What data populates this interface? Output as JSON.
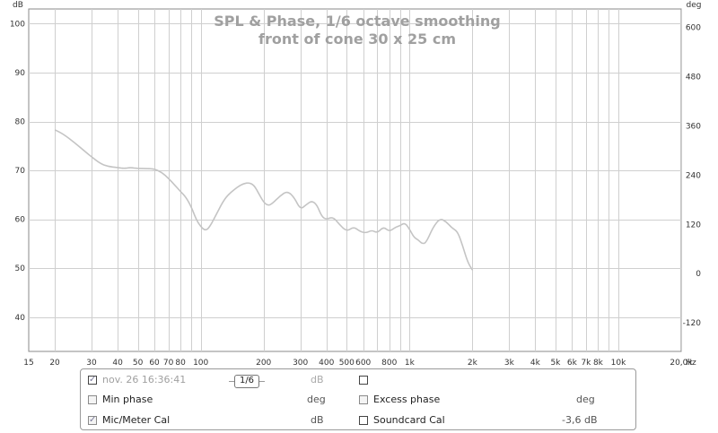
{
  "chart_data": {
    "type": "line",
    "title": "SPL & Phase, 1/6 octave smoothing",
    "subtitle": "front of cone 30 x 25 cm",
    "ylabel_left": "dB",
    "ylabel_right": "deg",
    "xunit": "Hz",
    "xscale": "log",
    "xlim": [
      15,
      20000
    ],
    "ylim_left": [
      33,
      103
    ],
    "ylim_right": [
      -189.6,
      645
    ],
    "grid": true,
    "x_ticks": [
      {
        "value": 15,
        "label": "15"
      },
      {
        "value": 20,
        "label": "20"
      },
      {
        "value": 30,
        "label": "30"
      },
      {
        "value": 40,
        "label": "40"
      },
      {
        "value": 50,
        "label": "50"
      },
      {
        "value": 60,
        "label": "60"
      },
      {
        "value": 70,
        "label": "70"
      },
      {
        "value": 80,
        "label": "80"
      },
      {
        "value": 100,
        "label": "100"
      },
      {
        "value": 200,
        "label": "200"
      },
      {
        "value": 300,
        "label": "300"
      },
      {
        "value": 400,
        "label": "400"
      },
      {
        "value": 500,
        "label": "500"
      },
      {
        "value": 600,
        "label": "600"
      },
      {
        "value": 800,
        "label": "800"
      },
      {
        "value": 1000,
        "label": "1k"
      },
      {
        "value": 2000,
        "label": "2k"
      },
      {
        "value": 3000,
        "label": "3k"
      },
      {
        "value": 4000,
        "label": "4k"
      },
      {
        "value": 5000,
        "label": "5k"
      },
      {
        "value": 6000,
        "label": "6k"
      },
      {
        "value": 7000,
        "label": "7k"
      },
      {
        "value": 8000,
        "label": "8k"
      },
      {
        "value": 10000,
        "label": "10k"
      },
      {
        "value": 20000,
        "label": "20,0k"
      }
    ],
    "y_ticks_left": [
      40,
      50,
      60,
      70,
      80,
      90,
      100
    ],
    "y_ticks_right": [
      -120,
      0,
      120,
      240,
      360,
      480,
      600
    ],
    "series": [
      {
        "name": "",
        "color": "#c4c4c4",
        "x": [
          20,
          22,
          25,
          28,
          30,
          33,
          36,
          40,
          43,
          46,
          50,
          55,
          60,
          65,
          70,
          75,
          80,
          85,
          90,
          95,
          100,
          105,
          110,
          120,
          130,
          140,
          150,
          160,
          170,
          180,
          190,
          200,
          210,
          220,
          240,
          260,
          280,
          300,
          320,
          340,
          360,
          380,
          400,
          430,
          460,
          500,
          540,
          580,
          620,
          660,
          700,
          750,
          800,
          850,
          900,
          950,
          1000,
          1050,
          1100,
          1150,
          1200,
          1300,
          1400,
          1500,
          1600,
          1700,
          1800,
          1900,
          2000
        ],
        "values": [
          78.3,
          77.4,
          75.6,
          73.8,
          72.8,
          71.4,
          70.8,
          70.6,
          70.4,
          70.6,
          70.4,
          70.4,
          70.3,
          69.6,
          68.4,
          67.0,
          65.7,
          64.5,
          62.6,
          60.0,
          58.5,
          57.7,
          58.3,
          61.4,
          64.2,
          65.6,
          66.6,
          67.3,
          67.5,
          67.0,
          65.2,
          63.5,
          62.8,
          63.2,
          64.8,
          65.8,
          64.5,
          62.0,
          63.0,
          63.8,
          63.0,
          60.5,
          60.0,
          60.5,
          59.0,
          57.5,
          58.5,
          57.5,
          57.2,
          57.8,
          57.2,
          58.5,
          57.5,
          58.3,
          58.7,
          59.3,
          58.0,
          56.3,
          55.8,
          55.0,
          55.2,
          58.5,
          60.2,
          59.5,
          58.2,
          57.5,
          54.5,
          51.2,
          49.6
        ]
      }
    ]
  },
  "panel": {
    "row1": {
      "label": "nov. 26 16:36:41",
      "smoothing": "1/6",
      "unit": "dB",
      "checked": "✓"
    },
    "row2": {
      "left_label": "Min phase",
      "left_unit": "deg",
      "right_label": "Excess phase",
      "right_unit": "deg"
    },
    "row3": {
      "left_label": "Mic/Meter Cal",
      "left_unit": "dB",
      "right_label": "Soundcard Cal",
      "right_value": "-3,6 dB",
      "checked": "✓"
    }
  }
}
